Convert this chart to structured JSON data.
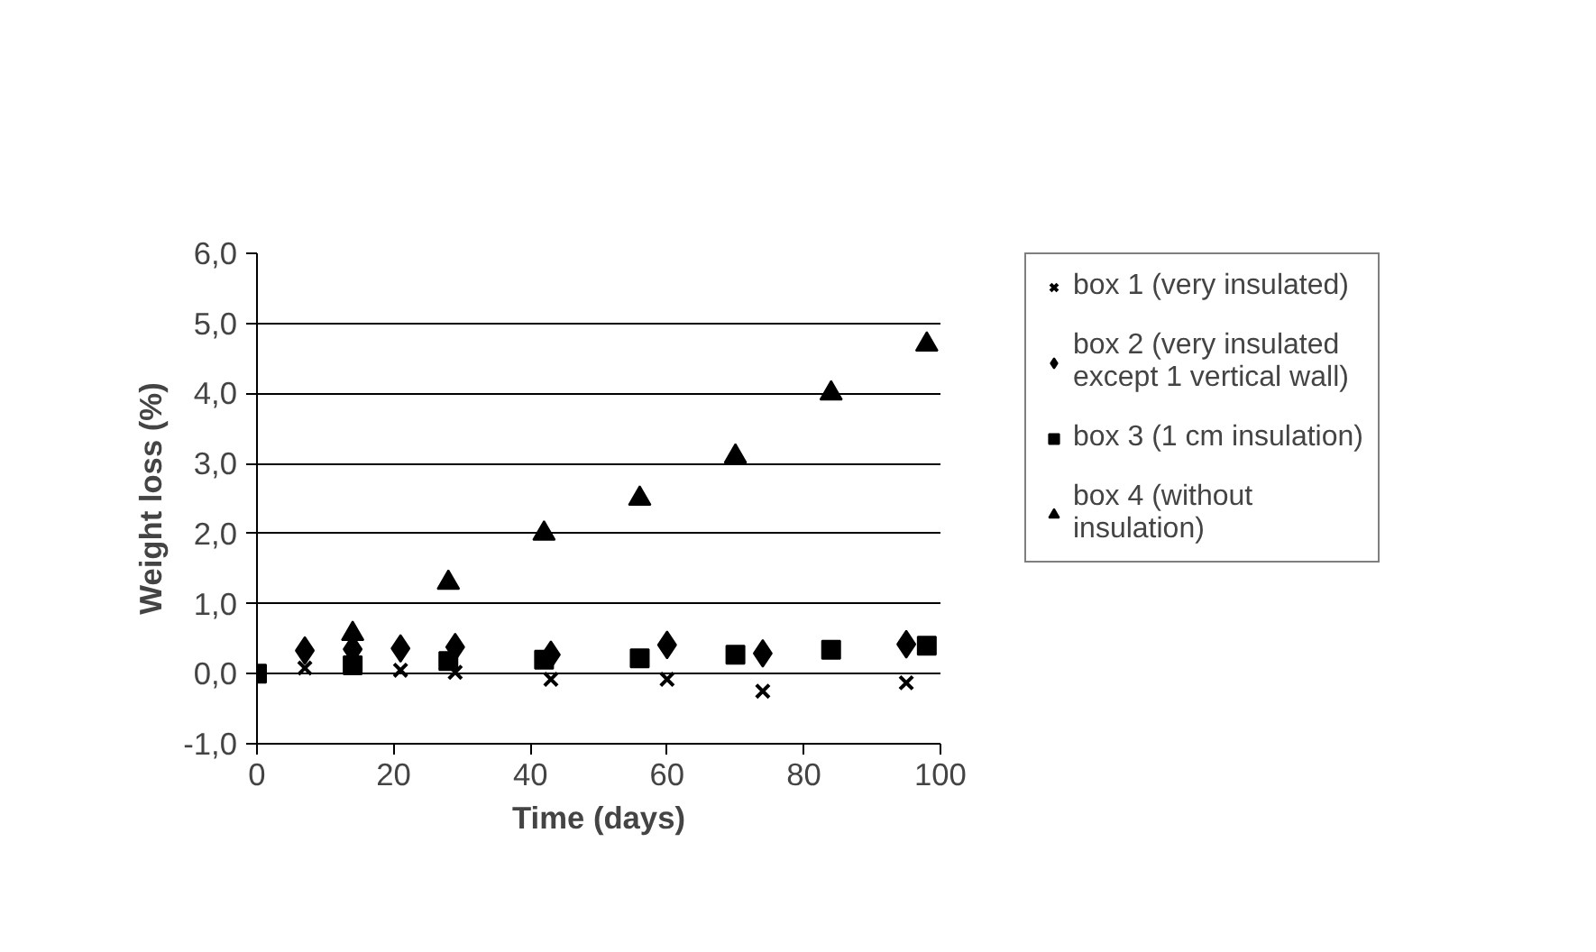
{
  "chart_data": {
    "type": "scatter",
    "xlabel": "Time (days)",
    "ylabel": "Weight loss (%)",
    "xlim": [
      0,
      100
    ],
    "xticks": [
      0,
      20,
      40,
      60,
      80,
      100
    ],
    "ylim": [
      -1,
      6
    ],
    "yticks": [
      {
        "value": -1,
        "label": "-1,0"
      },
      {
        "value": 0,
        "label": "0,0"
      },
      {
        "value": 1,
        "label": "1,0"
      },
      {
        "value": 2,
        "label": "2,0"
      },
      {
        "value": 3,
        "label": "3,0"
      },
      {
        "value": 4,
        "label": "4,0"
      },
      {
        "value": 5,
        "label": "5,0"
      },
      {
        "value": 6,
        "label": "6,0"
      }
    ],
    "grid": "y",
    "legend": "right",
    "series": [
      {
        "name": "box 1 (very insulated)",
        "color": "#000000",
        "marker": "cross",
        "x": [
          7,
          21,
          29,
          43,
          60,
          74,
          95
        ],
        "values": [
          0.08,
          0.05,
          0.02,
          -0.08,
          -0.08,
          -0.25,
          -0.13
        ]
      },
      {
        "name": "box 2 (very insulated except 1 vertical wall)",
        "color": "#000000",
        "marker": "diamond",
        "x": [
          7,
          14,
          21,
          29,
          43,
          60,
          74,
          95
        ],
        "values": [
          0.33,
          0.35,
          0.36,
          0.38,
          0.27,
          0.41,
          0.29,
          0.42
        ]
      },
      {
        "name": "box 3 (1 cm insulation)",
        "color": "#000000",
        "marker": "square",
        "x": [
          0,
          14,
          28,
          42,
          56,
          70,
          84,
          98
        ],
        "values": [
          0.0,
          0.12,
          0.18,
          0.2,
          0.22,
          0.27,
          0.34,
          0.4
        ]
      },
      {
        "name": "box 4 (without insulation)",
        "color": "#000000",
        "marker": "triangle",
        "x": [
          14,
          28,
          42,
          56,
          70,
          84,
          98
        ],
        "values": [
          0.57,
          1.3,
          2.0,
          2.5,
          3.1,
          4.0,
          4.7
        ]
      }
    ]
  }
}
